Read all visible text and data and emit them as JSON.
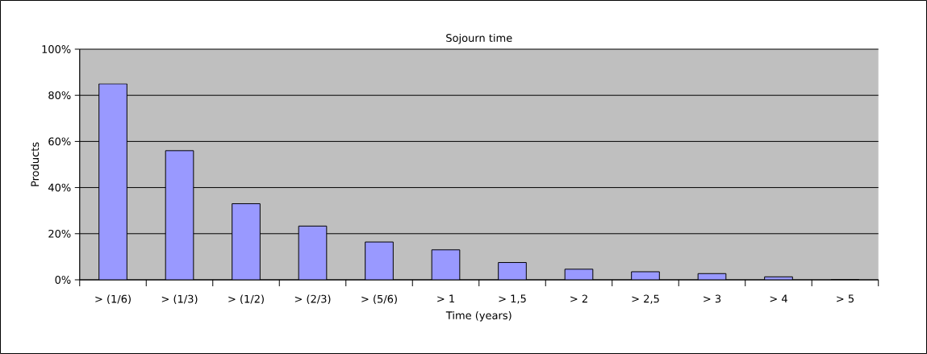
{
  "chart_data": {
    "type": "bar",
    "title": "Sojourn time",
    "xlabel": "Time (years)",
    "ylabel": "Products",
    "categories": [
      "> (1/6)",
      "> (1/3)",
      "> (1/2)",
      "> (2/3)",
      "> (5/6)",
      "> 1",
      "> 1,5",
      "> 2",
      "> 2,5",
      "> 3",
      "> 4",
      "> 5"
    ],
    "values": [
      85,
      56,
      33,
      23.3,
      16.4,
      13,
      7.5,
      4.6,
      3.5,
      2.7,
      1.3,
      0
    ],
    "color": "#9999ff",
    "ylim": [
      0,
      100
    ],
    "yticks": [
      {
        "value": 0,
        "label": "0%"
      },
      {
        "value": 20,
        "label": "20%"
      },
      {
        "value": 40,
        "label": "40%"
      },
      {
        "value": 60,
        "label": "60%"
      },
      {
        "value": 80,
        "label": "80%"
      },
      {
        "value": 100,
        "label": "100%"
      }
    ],
    "grid": "y"
  }
}
